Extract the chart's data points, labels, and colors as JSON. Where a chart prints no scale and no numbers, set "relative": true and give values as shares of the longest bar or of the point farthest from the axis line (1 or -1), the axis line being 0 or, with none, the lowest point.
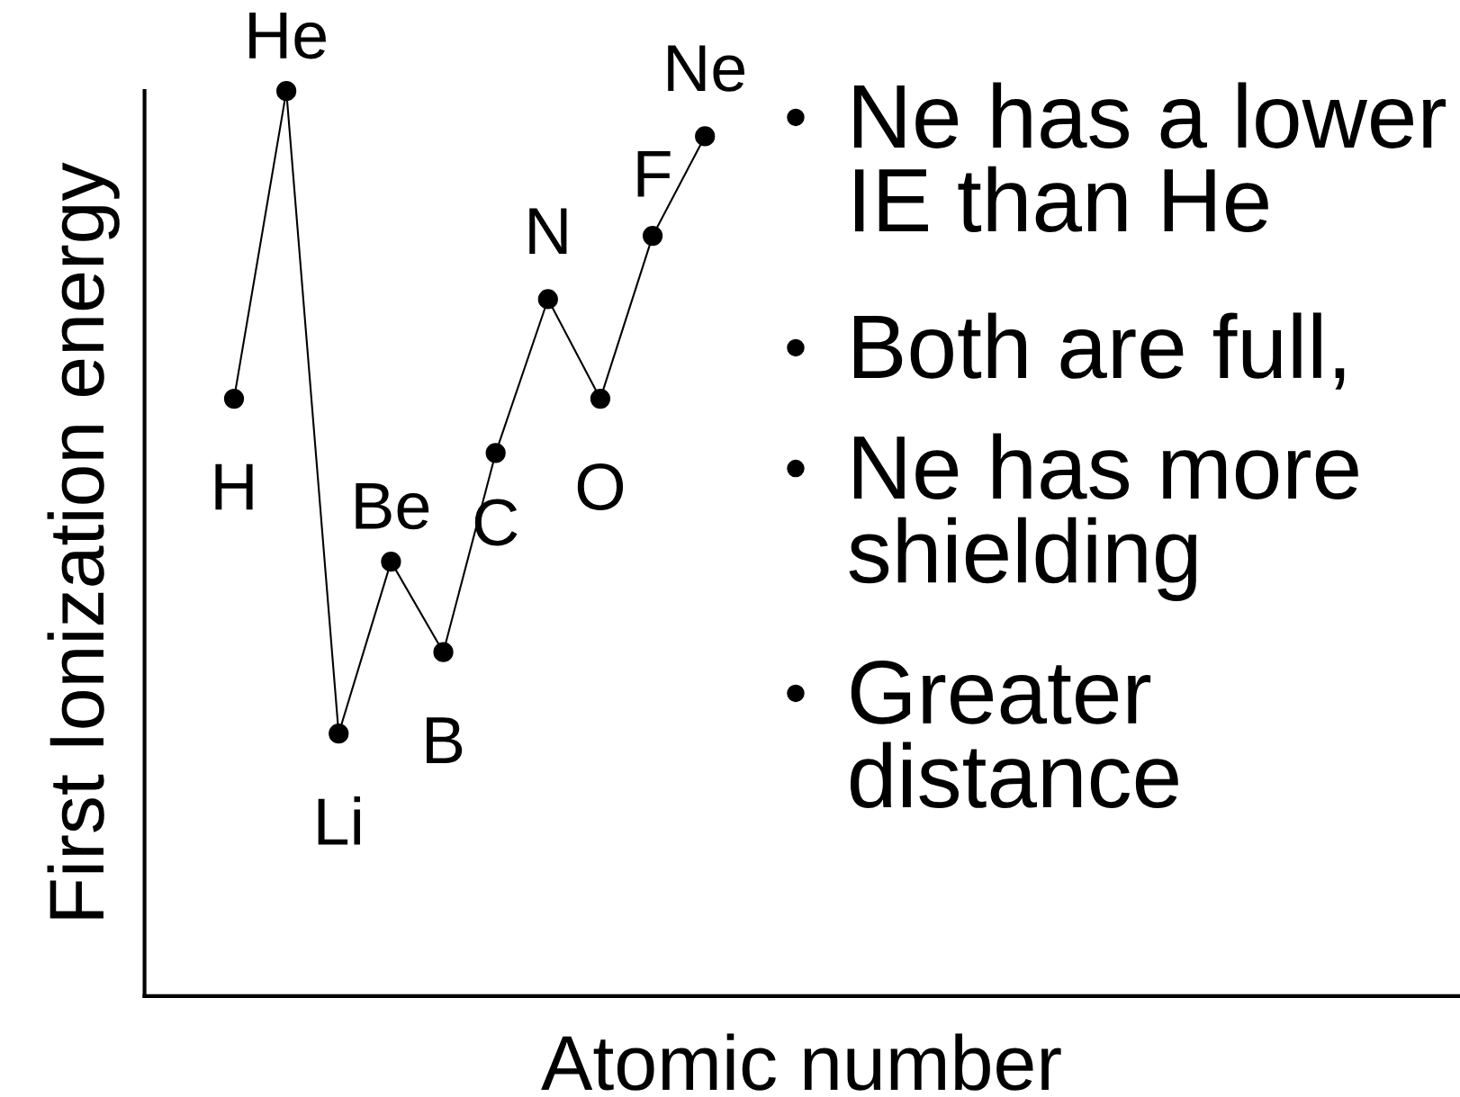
{
  "chart_data": {
    "type": "line",
    "relative": true,
    "marker": "circle",
    "line_style": "solid",
    "xlabel": "Atomic number",
    "ylabel": "First Ionization energy",
    "categories": [
      "H",
      "He",
      "Li",
      "Be",
      "B",
      "C",
      "N",
      "O",
      "F",
      "Ne"
    ],
    "series": [
      {
        "color": "#000000",
        "values": [
          0.66,
          1.0,
          0.29,
          0.48,
          0.38,
          0.6,
          0.77,
          0.66,
          0.84,
          0.95
        ]
      }
    ],
    "annotations": [
      "Ne has a lower IE than He",
      "Both are full,",
      "Ne has more shielding",
      "Greater distance"
    ]
  }
}
